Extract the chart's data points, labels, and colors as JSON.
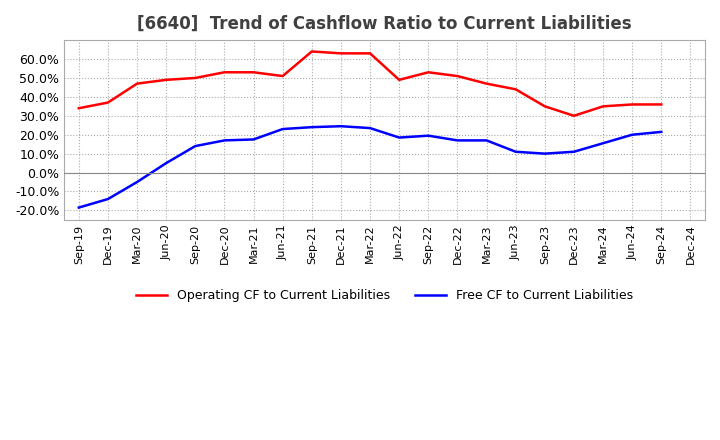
{
  "title": "[6640]  Trend of Cashflow Ratio to Current Liabilities",
  "x_labels": [
    "Sep-19",
    "Dec-19",
    "Mar-20",
    "Jun-20",
    "Sep-20",
    "Dec-20",
    "Mar-21",
    "Jun-21",
    "Sep-21",
    "Dec-21",
    "Mar-22",
    "Jun-22",
    "Sep-22",
    "Dec-22",
    "Mar-23",
    "Jun-23",
    "Sep-23",
    "Dec-23",
    "Mar-24",
    "Jun-24",
    "Sep-24",
    "Dec-24"
  ],
  "operating_cf": [
    0.34,
    0.37,
    0.47,
    0.49,
    0.5,
    0.53,
    0.53,
    0.51,
    0.64,
    0.63,
    0.63,
    0.49,
    0.53,
    0.51,
    0.47,
    0.44,
    0.35,
    0.3,
    0.35,
    0.36,
    0.36,
    null
  ],
  "free_cf": [
    -0.185,
    -0.14,
    -0.05,
    0.05,
    0.14,
    0.17,
    0.175,
    0.23,
    0.24,
    0.245,
    0.235,
    0.185,
    0.195,
    0.17,
    0.17,
    0.11,
    0.1,
    0.11,
    0.155,
    0.2,
    0.215,
    null
  ],
  "ylim": [
    -0.25,
    0.7
  ],
  "yticks": [
    -0.2,
    -0.1,
    0.0,
    0.1,
    0.2,
    0.3,
    0.4,
    0.5,
    0.6
  ],
  "operating_color": "#FF0000",
  "free_color": "#0000FF",
  "background_color": "#FFFFFF",
  "grid_color": "#AAAAAA",
  "title_color": "#404040",
  "line_width": 1.8
}
